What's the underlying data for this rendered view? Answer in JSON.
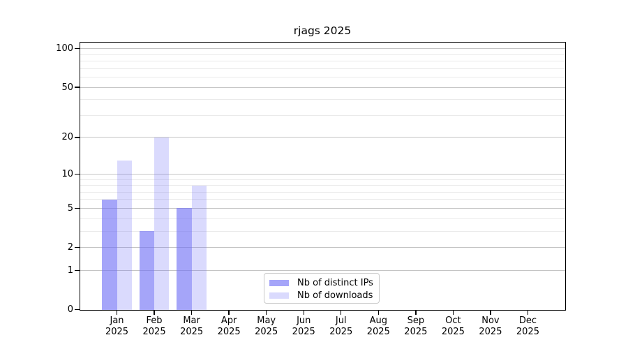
{
  "title": "rjags 2025",
  "chart_data": {
    "type": "bar",
    "title": "rjags 2025",
    "x_month_labels": [
      "Jan",
      "Feb",
      "Mar",
      "Apr",
      "May",
      "Jun",
      "Jul",
      "Aug",
      "Sep",
      "Oct",
      "Nov",
      "Dec"
    ],
    "x_year_label": "2025",
    "series": [
      {
        "name": "Nb of distinct IPs",
        "color": "rgba(112,112,246,0.63)",
        "values": [
          6,
          3,
          5,
          null,
          null,
          null,
          null,
          null,
          null,
          null,
          null,
          null
        ]
      },
      {
        "name": "Nb of downloads",
        "color": "rgba(112,112,246,0.26)",
        "values": [
          13,
          20,
          8,
          null,
          null,
          null,
          null,
          null,
          null,
          null,
          null,
          null
        ]
      }
    ],
    "y_axis": {
      "scale": "log1p",
      "major_ticks": [
        0,
        1,
        2,
        5,
        10,
        20,
        50,
        100
      ],
      "minor_ticks": [
        3,
        4,
        6,
        7,
        8,
        9,
        30,
        40,
        60,
        70,
        80,
        90
      ],
      "top_value": 113
    },
    "legend": [
      "Nb of distinct IPs",
      "Nb of downloads"
    ],
    "legend_position": "bottom-center",
    "grid": true
  },
  "colors": {
    "bar_ips": "rgba(112,112,246,0.63)",
    "bar_downloads": "rgba(112,112,246,0.26)",
    "grid_major": "#c4c4c4",
    "grid_minor": "#eaeaea",
    "spine": "#000000",
    "legend_border": "#c9c9c9",
    "text": "#000000",
    "background": "#ffffff"
  }
}
